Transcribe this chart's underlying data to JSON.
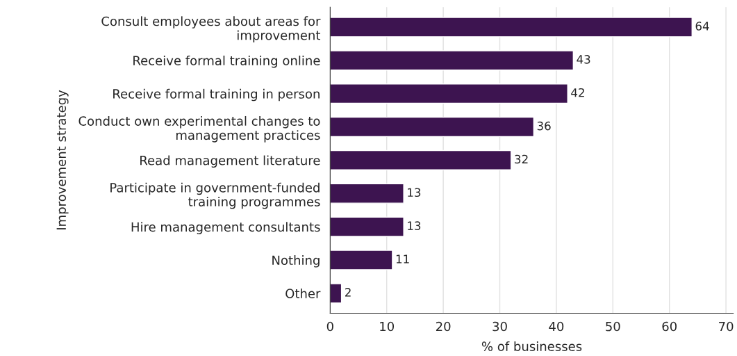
{
  "chart_data": {
    "type": "bar",
    "orientation": "horizontal",
    "categories": [
      "Consult employees about areas for\nimprovement",
      "Receive formal training online",
      "Receive formal training in person",
      "Conduct own experimental changes to\nmanagement practices",
      "Read management literature",
      "Participate in government-funded\ntraining programmes",
      "Hire management consultants",
      "Nothing",
      "Other"
    ],
    "values": [
      64,
      43,
      42,
      36,
      32,
      13,
      13,
      11,
      2
    ],
    "color": "#3d1450",
    "xlabel": "% of businesses",
    "ylabel": "Improvement strategy",
    "xlim": [
      0,
      71.3
    ],
    "xticks": [
      0,
      10,
      20,
      30,
      40,
      50,
      60,
      70
    ],
    "grid": "x",
    "data_labels": true
  }
}
